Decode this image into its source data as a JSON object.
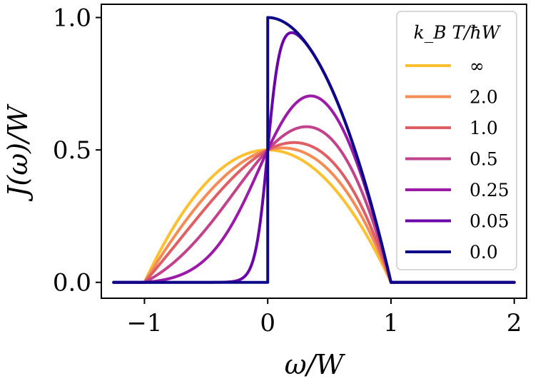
{
  "chart_data": {
    "type": "line",
    "xlabel": "ω/W",
    "ylabel": "J(ω)/W",
    "xlim": [
      -1.35,
      2.1
    ],
    "ylim": [
      -0.06,
      1.05
    ],
    "xticks": [
      -1,
      0,
      1,
      2
    ],
    "xtick_labels": [
      "−1",
      "0",
      "1",
      "2"
    ],
    "yticks": [
      0.0,
      0.5,
      1.0
    ],
    "ytick_labels": [
      "0.0",
      "0.5",
      "1.0"
    ],
    "grid": false,
    "legend": {
      "title": "k_B T/ħW",
      "placement": "top-right"
    },
    "x_range": [
      -1.25,
      2.0
    ],
    "series": [
      {
        "name": "∞",
        "color": "#FCC030",
        "temperature": "inf"
      },
      {
        "name": "2.0",
        "color": "#F58C55",
        "temperature": 2.0
      },
      {
        "name": "1.0",
        "color": "#DE6065",
        "temperature": 1.0
      },
      {
        "name": "0.5",
        "color": "#C2428C",
        "temperature": 0.5
      },
      {
        "name": "0.25",
        "color": "#9C1AA8",
        "temperature": 0.25
      },
      {
        "name": "0.05",
        "color": "#6A05A8",
        "temperature": 0.05
      },
      {
        "name": "0.0",
        "color": "#0D0887",
        "temperature": 0.0
      }
    ]
  }
}
